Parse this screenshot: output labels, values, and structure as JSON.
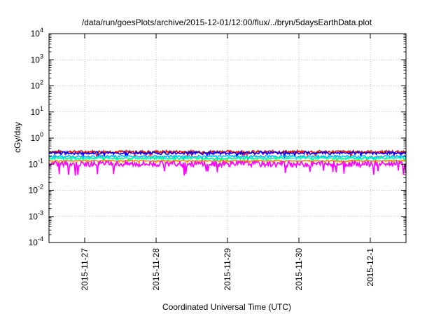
{
  "chart_data": {
    "type": "line",
    "title": "/data/run/goesPlots/archive/2015-12-01/12:00/flux/../bryn/5daysEarthData.plot",
    "xlabel": "Coordinated Universal Time (UTC)",
    "ylabel": "cGy/day",
    "yscale": "log",
    "ylim": [
      "1e-4",
      "1e4"
    ],
    "y_ticks": [
      {
        "base": "10",
        "exp": "-4"
      },
      {
        "base": "10",
        "exp": "-3"
      },
      {
        "base": "10",
        "exp": "-2"
      },
      {
        "base": "10",
        "exp": "-1"
      },
      {
        "base": "10",
        "exp": "0"
      },
      {
        "base": "10",
        "exp": "1"
      },
      {
        "base": "10",
        "exp": "2"
      },
      {
        "base": "10",
        "exp": "3"
      },
      {
        "base": "10",
        "exp": "4"
      }
    ],
    "xlim": [
      "2015-11-26 12:00",
      "2015-12-01 12:00"
    ],
    "x_ticks": [
      "2015-11-27",
      "2015-11-28",
      "2015-11-29",
      "2015-11-30",
      "2015-12-1"
    ],
    "grid": true,
    "series": [
      {
        "color": "#ff0000",
        "level": 0.3,
        "variation": 0.12
      },
      {
        "color": "#0000ff",
        "level": 0.27,
        "variation": 0.12
      },
      {
        "color": "#00bfff",
        "level": 0.2,
        "variation": 0.1
      },
      {
        "color": "#00ff99",
        "level": 0.17,
        "variation": 0.08
      },
      {
        "color": "#ff8c00",
        "level": 0.135,
        "variation": 0.06
      },
      {
        "color": "#ff00ff",
        "level": 0.105,
        "variation": 0.25
      }
    ]
  }
}
